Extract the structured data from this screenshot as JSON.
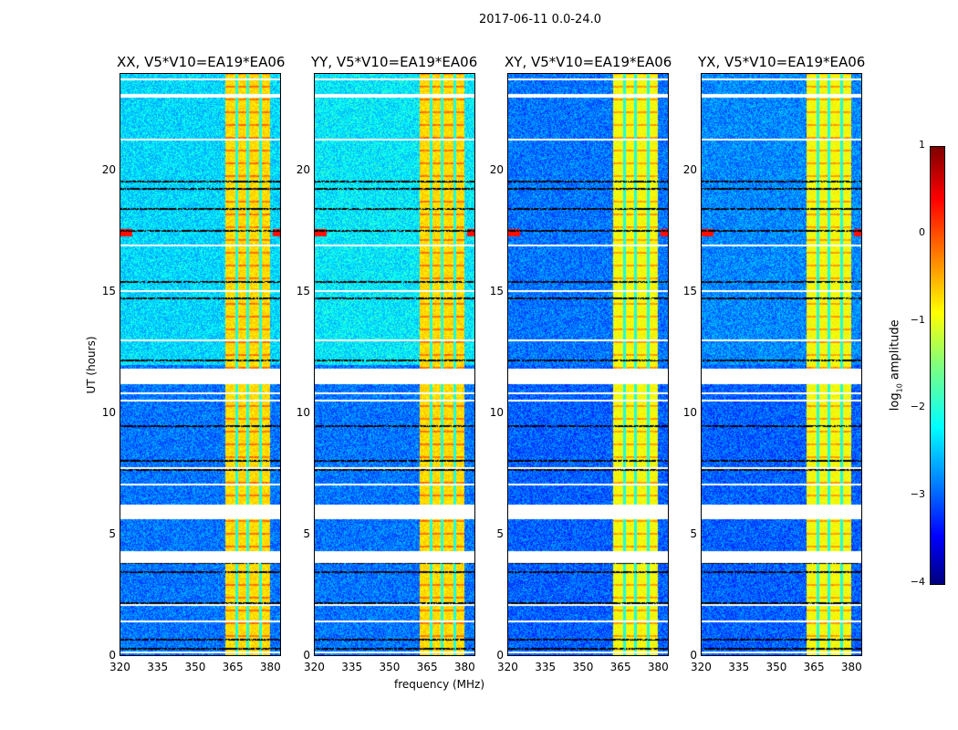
{
  "chart_data": {
    "type": "heatmap",
    "title": "2017-06-11 0.0-24.0",
    "xlabel": "frequency (MHz)",
    "ylabel": "UT (hours)",
    "xlim": [
      320,
      384.4
    ],
    "ylim": [
      0,
      24
    ],
    "xticks": [
      "320",
      "335",
      "350",
      "365",
      "380"
    ],
    "xtick_values": [
      320,
      335,
      350,
      365,
      380
    ],
    "yticks": [
      "0",
      "5",
      "10",
      "15",
      "20"
    ],
    "ytick_values": [
      0,
      5,
      10,
      15,
      20
    ],
    "panels": [
      {
        "title": "XX, V5*V10=EA19*EA06",
        "upper_background": -2.3,
        "lower_background": -2.8
      },
      {
        "title": "YY, V5*V10=EA19*EA06",
        "upper_background": -2.2,
        "lower_background": -2.8
      },
      {
        "title": "XY, V5*V10=EA19*EA06",
        "upper_background": -2.8,
        "lower_background": -2.9
      },
      {
        "title": "YX, V5*V10=EA19*EA06",
        "upper_background": -2.7,
        "lower_background": -2.9
      }
    ],
    "band_MHz": [
      362,
      380
    ],
    "band_level": -0.9,
    "flagged_hours": [
      [
        3.85,
        4.35
      ],
      [
        5.67,
        6.27
      ],
      [
        11.2,
        11.85
      ],
      [
        23.0,
        23.15
      ]
    ],
    "colorbar": {
      "label": "log10 amplitude",
      "label_main": "log",
      "label_sub": "10",
      "label_rest": " amplitude",
      "range": [
        -4,
        1
      ],
      "ticks": [
        "1",
        "0",
        "−1",
        "−2",
        "−3",
        "−4"
      ],
      "tick_values": [
        1,
        0,
        -1,
        -2,
        -3,
        -4
      ],
      "colormap": "jet"
    }
  }
}
